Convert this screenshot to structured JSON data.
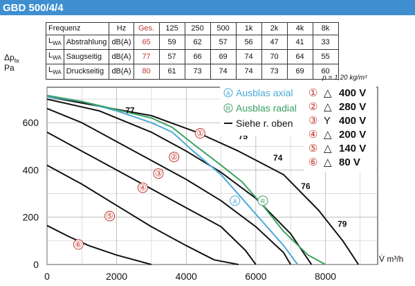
{
  "header": {
    "title": "GBD 500/4/4"
  },
  "table": {
    "columns": [
      "Frequenz",
      "",
      "Hz",
      "Ges.",
      "125",
      "250",
      "500",
      "1k",
      "2k",
      "4k",
      "8k"
    ],
    "rows": [
      {
        "lwa": "L",
        "sub": "WA",
        "label": "Abstrahlung",
        "unit": "dB(A)",
        "ges": "65",
        "values": [
          "59",
          "62",
          "57",
          "56",
          "47",
          "41",
          "33"
        ]
      },
      {
        "lwa": "L",
        "sub": "WA",
        "label": "Saugseitig",
        "unit": "dB(A)",
        "ges": "77",
        "values": [
          "57",
          "66",
          "69",
          "74",
          "70",
          "64",
          "55"
        ]
      },
      {
        "lwa": "L",
        "sub": "WA",
        "label": "Druckseitig",
        "unit": "dB(A)",
        "ges": "80",
        "values": [
          "61",
          "73",
          "74",
          "74",
          "73",
          "69",
          "60"
        ]
      }
    ]
  },
  "rho_text": "ρ = 1,20 kg/m³",
  "ylabel_top": "Δp",
  "ylabel_sub": "fa",
  "ylabel_unit": "Pa",
  "xlabel": "V̇ m³/h",
  "legend": {
    "axial": {
      "marker": "A",
      "label": "Ausblas axial",
      "color": "#4aa8d8"
    },
    "radial": {
      "marker": "R",
      "label": "Ausblas radial",
      "color": "#3aa060"
    },
    "other": {
      "label": "Siehe r. oben",
      "color": "#111111"
    },
    "ratings": [
      {
        "num": "①",
        "sym": "△",
        "value": "400 V"
      },
      {
        "num": "②",
        "sym": "△",
        "value": "280 V"
      },
      {
        "num": "③",
        "sym": "Y",
        "value": "400 V"
      },
      {
        "num": "④",
        "sym": "△",
        "value": "200 V"
      },
      {
        "num": "⑤",
        "sym": "△",
        "value": "140 V"
      },
      {
        "num": "⑥",
        "sym": "△",
        "value": "80 V"
      }
    ]
  },
  "chart_data": {
    "type": "line",
    "xlabel": "V̇ m³/h",
    "ylabel": "Δpfa Pa",
    "xlim": [
      0,
      9500
    ],
    "ylim": [
      0,
      750
    ],
    "xticks": [
      0,
      2000,
      4000,
      6000,
      8000
    ],
    "yticks": [
      0,
      200,
      400,
      600
    ],
    "series": [
      {
        "name": "①",
        "color": "#111111",
        "points": [
          [
            0,
            710
          ],
          [
            1500,
            670
          ],
          [
            3000,
            630
          ],
          [
            4300,
            560
          ],
          [
            5500,
            480
          ],
          [
            6800,
            380
          ],
          [
            7800,
            230
          ],
          [
            8500,
            100
          ],
          [
            8950,
            0
          ]
        ]
      },
      {
        "name": "②",
        "color": "#111111",
        "points": [
          [
            0,
            700
          ],
          [
            1500,
            650
          ],
          [
            3000,
            560
          ],
          [
            4000,
            480
          ],
          [
            5000,
            390
          ],
          [
            6000,
            280
          ],
          [
            7000,
            130
          ],
          [
            7600,
            0
          ]
        ]
      },
      {
        "name": "③",
        "color": "#111111",
        "points": [
          [
            0,
            660
          ],
          [
            1000,
            600
          ],
          [
            2000,
            520
          ],
          [
            3000,
            440
          ],
          [
            4000,
            360
          ],
          [
            5000,
            270
          ],
          [
            6000,
            160
          ],
          [
            6800,
            50
          ],
          [
            7000,
            0
          ]
        ]
      },
      {
        "name": "④",
        "color": "#111111",
        "points": [
          [
            0,
            560
          ],
          [
            1000,
            480
          ],
          [
            2000,
            400
          ],
          [
            3000,
            320
          ],
          [
            4000,
            240
          ],
          [
            5000,
            160
          ],
          [
            5700,
            60
          ],
          [
            6000,
            0
          ]
        ]
      },
      {
        "name": "⑤",
        "color": "#111111",
        "points": [
          [
            0,
            420
          ],
          [
            1000,
            340
          ],
          [
            2000,
            250
          ],
          [
            3000,
            160
          ],
          [
            4000,
            80
          ],
          [
            4800,
            20
          ],
          [
            5500,
            0
          ]
        ]
      },
      {
        "name": "⑥",
        "color": "#111111",
        "points": [
          [
            0,
            165
          ],
          [
            600,
            120
          ],
          [
            1200,
            80
          ],
          [
            2000,
            40
          ],
          [
            3000,
            0
          ]
        ]
      },
      {
        "name": "A",
        "color": "#4aa8d8",
        "points": [
          [
            0,
            710
          ],
          [
            1000,
            690
          ],
          [
            2000,
            650
          ],
          [
            3000,
            600
          ],
          [
            3600,
            560
          ],
          [
            4200,
            480
          ],
          [
            5000,
            380
          ],
          [
            5600,
            280
          ],
          [
            6200,
            180
          ],
          [
            6800,
            80
          ],
          [
            7200,
            0
          ]
        ]
      },
      {
        "name": "R",
        "color": "#3aa060",
        "points": [
          [
            0,
            715
          ],
          [
            1000,
            690
          ],
          [
            2000,
            655
          ],
          [
            3000,
            620
          ],
          [
            3600,
            580
          ],
          [
            4200,
            510
          ],
          [
            5000,
            420
          ],
          [
            5600,
            350
          ],
          [
            6200,
            250
          ],
          [
            6800,
            140
          ],
          [
            7500,
            40
          ],
          [
            8000,
            0
          ]
        ]
      }
    ],
    "annotations": [
      {
        "text": "77",
        "x": 2250,
        "y": 640
      },
      {
        "text": "75",
        "x": 5500,
        "y": 530
      },
      {
        "text": "74",
        "x": 6500,
        "y": 440
      },
      {
        "text": "76",
        "x": 7300,
        "y": 320
      },
      {
        "text": "79",
        "x": 8350,
        "y": 160
      }
    ],
    "curve_markers": [
      {
        "label": "①",
        "x": 4400,
        "y": 555
      },
      {
        "label": "②",
        "x": 3650,
        "y": 455
      },
      {
        "label": "③",
        "x": 3200,
        "y": 385
      },
      {
        "label": "④",
        "x": 2750,
        "y": 325
      },
      {
        "label": "⑤",
        "x": 1800,
        "y": 205
      },
      {
        "label": "⑥",
        "x": 900,
        "y": 85
      },
      {
        "label": "A",
        "x": 5400,
        "y": 270
      },
      {
        "label": "R",
        "x": 6200,
        "y": 270
      }
    ]
  }
}
